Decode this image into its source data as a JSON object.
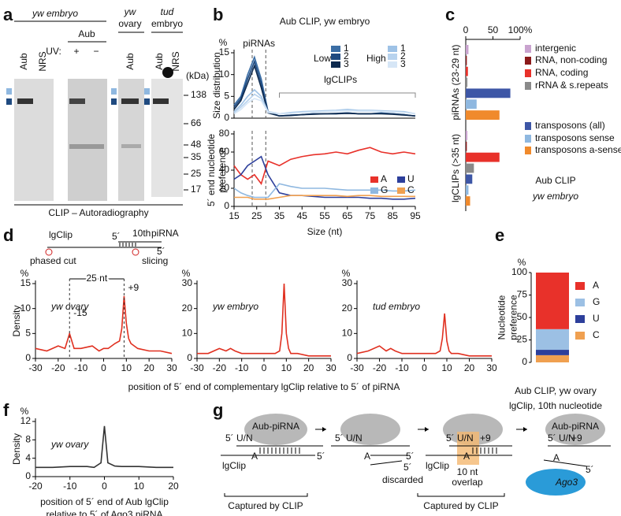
{
  "panel_letters": [
    "a",
    "b",
    "c",
    "d",
    "e",
    "f",
    "g"
  ],
  "panel_a": {
    "texts": [
      "yw embryo",
      "Aub",
      "UV:",
      "+",
      "−",
      "yw",
      "ovary",
      "tud",
      "embryo"
    ],
    "lane_labels": [
      "Aub",
      "NRS",
      "Aub",
      "Aub",
      "NRS"
    ],
    "unit": "(kDa)",
    "markers": [
      "138",
      "66",
      "48",
      "35",
      "25",
      "17"
    ],
    "caption": "CLIP – Autoradiography"
  },
  "panel_d_scheme": {
    "texts": [
      "lgClip",
      "5´",
      "10th",
      "piRNA",
      "5´",
      "phased cut",
      "slicing"
    ]
  },
  "panel_g": {
    "texts": [
      "Aub-piRNA",
      "5´ U/N",
      "lgClip",
      "A",
      "5´",
      "5´ U/N",
      "A",
      "5´",
      "5´",
      "discarded",
      "5´ U/N",
      "+9",
      "lgClip",
      "A",
      "10 nt",
      "overlap",
      "5´ U/N",
      "+9",
      "Aub-piRNA",
      "A",
      "5´",
      "Ago3",
      "Captured by CLIP",
      "Captured by CLIP"
    ]
  },
  "chart_data": [
    {
      "type": "line",
      "title": "Aub CLIP, yw embryo",
      "ylabel": [
        "Size distribution"
      ],
      "y_unit": "%",
      "annotations": [
        {
          "text": "piRNAs",
          "x": 26
        },
        {
          "text": "lgCLIPs",
          "x": 62
        }
      ],
      "legend_groups": [
        "Low",
        "High"
      ],
      "vlines": [
        23,
        29
      ],
      "x": [
        15,
        18,
        21,
        24,
        27,
        30,
        35,
        40,
        45,
        50,
        55,
        60,
        65,
        70,
        75,
        80,
        85,
        90,
        95
      ],
      "xlim": [
        15,
        95
      ],
      "ylim": [
        0,
        15
      ],
      "yticks": [
        0,
        5,
        10,
        15
      ],
      "series": [
        {
          "name": "1",
          "group": 0,
          "color": "#3b6ea5",
          "values": [
            3,
            5,
            10,
            14,
            9,
            1.5,
            0.5,
            0.7,
            0.8,
            1,
            1,
            1,
            1.2,
            1,
            1,
            1.2,
            1,
            0.8,
            0.5
          ]
        },
        {
          "name": "2",
          "group": 0,
          "color": "#1f4a80",
          "values": [
            2.5,
            4.5,
            9,
            13,
            8,
            1.5,
            0.5,
            0.7,
            0.8,
            1,
            1,
            1.1,
            1.2,
            1,
            1,
            1.1,
            1,
            0.8,
            0.5
          ]
        },
        {
          "name": "3",
          "group": 0,
          "color": "#0d2a4f",
          "values": [
            2,
            4,
            8,
            12,
            7,
            1.2,
            0.5,
            0.6,
            0.8,
            0.9,
            1,
            1,
            1.1,
            1,
            1,
            1,
            0.9,
            0.7,
            0.5
          ]
        },
        {
          "name": "1",
          "group": 1,
          "color": "#9ec2e6",
          "values": [
            1.5,
            3,
            5,
            6.5,
            5,
            1.5,
            1,
            1.3,
            1.5,
            1.6,
            1.7,
            1.8,
            2,
            1.8,
            1.8,
            1.7,
            1.6,
            1.5,
            1
          ]
        },
        {
          "name": "2",
          "group": 1,
          "color": "#b8d3ee",
          "values": [
            1.3,
            2.5,
            4,
            5.5,
            4.5,
            1.5,
            1,
            1.2,
            1.4,
            1.5,
            1.6,
            1.7,
            1.8,
            1.7,
            1.7,
            1.6,
            1.5,
            1.4,
            1
          ]
        },
        {
          "name": "3",
          "group": 1,
          "color": "#d6e6f6",
          "values": [
            1,
            2,
            3.5,
            4.5,
            4,
            1.3,
            1,
            1.1,
            1.3,
            1.4,
            1.5,
            1.6,
            1.7,
            1.6,
            1.6,
            1.5,
            1.4,
            1.3,
            1
          ]
        }
      ]
    },
    {
      "type": "line",
      "ylabel": [
        "5´ end nucleotide",
        "preference"
      ],
      "xlabel": [
        "Size (nt)"
      ],
      "vlines": [
        23,
        29
      ],
      "x": [
        15,
        18,
        21,
        24,
        27,
        30,
        35,
        40,
        45,
        50,
        55,
        60,
        65,
        70,
        75,
        80,
        85,
        90,
        95
      ],
      "xlim": [
        15,
        95
      ],
      "xticks": [
        15,
        25,
        35,
        45,
        55,
        65,
        75,
        85,
        95
      ],
      "ylim": [
        0,
        80
      ],
      "yticks": [
        0,
        20,
        40,
        60,
        80
      ],
      "series": [
        {
          "name": "A",
          "color": "#e8312a",
          "values": [
            45,
            35,
            30,
            35,
            25,
            50,
            45,
            52,
            55,
            57,
            58,
            60,
            58,
            62,
            65,
            60,
            58,
            60,
            58
          ]
        },
        {
          "name": "U",
          "color": "#2d3f9b",
          "values": [
            30,
            35,
            45,
            50,
            55,
            35,
            15,
            12,
            12,
            11,
            10,
            10,
            10,
            10,
            9,
            9,
            8,
            8,
            9
          ]
        },
        {
          "name": "G",
          "color": "#8fb8e0",
          "values": [
            20,
            15,
            12,
            10,
            10,
            10,
            25,
            22,
            20,
            20,
            20,
            19,
            18,
            18,
            18,
            18,
            17,
            17,
            18
          ]
        },
        {
          "name": "C",
          "color": "#f0a050",
          "values": [
            10,
            10,
            10,
            8,
            8,
            8,
            10,
            12,
            12,
            12,
            12,
            12,
            11,
            12,
            12,
            11,
            11,
            11,
            11
          ]
        }
      ]
    },
    {
      "type": "hbar",
      "categories": [
        "piRNAs (23-29 nt)",
        "lgCLIPs (>35 nt)"
      ],
      "caption": [
        "Aub CLIP",
        "yw embryo"
      ],
      "xlim": [
        0,
        100
      ],
      "xticks": [
        0,
        50,
        {
          "value": 100,
          "label": "100%"
        }
      ],
      "series": [
        {
          "name": "intergenic",
          "color": "#c9a3cf",
          "values": [
            5,
            3
          ]
        },
        {
          "name": "RNA, non-coding",
          "color": "#8b1a1a",
          "values": [
            2,
            2
          ]
        },
        {
          "name": "RNA, coding",
          "color": "#e8312a",
          "values": [
            4,
            62
          ]
        },
        {
          "name": "rRNA & s.repeats",
          "color": "#8a8a8a",
          "values": [
            3,
            15
          ]
        },
        {
          "name": "transposons (all)",
          "color": "#3d56a6",
          "values": [
            82,
            12
          ]
        },
        {
          "name": "transposons sense",
          "color": "#8fb8e0",
          "values": [
            20,
            5
          ]
        },
        {
          "name": "transposons a-sense",
          "color": "#f08a2c",
          "values": [
            62,
            8
          ]
        }
      ]
    },
    {
      "type": "line",
      "title": "yw ovary",
      "ylabel": [
        "Density"
      ],
      "y_unit": "%",
      "span_label": "25 nt",
      "xlabel": [
        "position of 5´ end of complementary lgClip relative to 5´ of piRNA"
      ],
      "annotations": [
        {
          "text": "-15",
          "x": -15
        },
        {
          "text": "+9",
          "x": 9
        }
      ],
      "x": [
        -30,
        -25,
        -20,
        -17,
        -15,
        -13,
        -10,
        -5,
        -2,
        0,
        2,
        5,
        7,
        8,
        9,
        10,
        11,
        12,
        15,
        20,
        25,
        30
      ],
      "xlim": [
        -30,
        30
      ],
      "xticks": [
        -30,
        -20,
        -10,
        0,
        10,
        20,
        30
      ],
      "ylim": [
        0,
        15
      ],
      "yticks": [
        0,
        5,
        10,
        15
      ],
      "series": [
        {
          "color": "#e03020",
          "values": [
            2,
            1.5,
            2.5,
            2,
            5,
            2,
            2,
            2.5,
            1.5,
            2,
            2,
            3,
            3.5,
            6,
            12.5,
            7,
            4,
            3,
            2,
            1.5,
            1.5,
            1
          ]
        }
      ]
    },
    {
      "type": "line",
      "title": "yw embryo",
      "y_unit": "%",
      "x": [
        -30,
        -25,
        -20,
        -17,
        -15,
        -13,
        -10,
        -5,
        -2,
        0,
        2,
        5,
        7,
        8,
        9,
        10,
        11,
        12,
        15,
        20,
        25,
        30
      ],
      "xlim": [
        -30,
        30
      ],
      "xticks": [
        -30,
        -20,
        -10,
        0,
        10,
        20,
        30
      ],
      "ylim": [
        0,
        30
      ],
      "yticks": [
        0,
        10,
        20,
        30
      ],
      "series": [
        {
          "color": "#e03020",
          "values": [
            2,
            2,
            4,
            3,
            4,
            3,
            2,
            2,
            2,
            2,
            2,
            2,
            3,
            10,
            30,
            10,
            4,
            2,
            2,
            1,
            1,
            1
          ]
        }
      ]
    },
    {
      "type": "line",
      "title": "tud embryo",
      "y_unit": "%",
      "x": [
        -30,
        -25,
        -20,
        -17,
        -15,
        -13,
        -10,
        -5,
        -2,
        0,
        2,
        5,
        7,
        8,
        9,
        10,
        11,
        12,
        15,
        20,
        25,
        30
      ],
      "xlim": [
        -30,
        30
      ],
      "xticks": [
        -30,
        -20,
        -10,
        0,
        10,
        20,
        30
      ],
      "ylim": [
        0,
        30
      ],
      "yticks": [
        0,
        10,
        20,
        30
      ],
      "series": [
        {
          "color": "#e03020",
          "values": [
            2,
            3,
            5,
            3,
            4,
            3,
            2,
            2,
            2,
            2,
            2,
            2,
            3,
            8,
            18,
            7,
            3,
            2,
            2,
            1,
            1,
            1
          ]
        }
      ]
    },
    {
      "type": "stacked_bar",
      "ylabel": [
        "Nucleotide",
        "preference"
      ],
      "y_unit": "%",
      "caption": [
        "Aub CLIP, yw ovary",
        "lgClip, 10th nucleotide"
      ],
      "ylim": [
        0,
        100
      ],
      "yticks": [
        0,
        25,
        50,
        75,
        100
      ],
      "series": [
        {
          "name": "A",
          "color": "#e8312a",
          "values": [
            63
          ]
        },
        {
          "name": "G",
          "color": "#9cc0e4",
          "values": [
            23
          ]
        },
        {
          "name": "U",
          "color": "#2d3f9b",
          "values": [
            6
          ]
        },
        {
          "name": "C",
          "color": "#f0a050",
          "values": [
            8
          ]
        }
      ]
    },
    {
      "type": "line",
      "title": "yw ovary",
      "ylabel": [
        "Density"
      ],
      "y_unit": "%",
      "xlabel": [
        "position of 5´ end of Aub lgClip",
        "relative to 5´ of Ago3 piRNA"
      ],
      "x": [
        -20,
        -15,
        -10,
        -5,
        -3,
        -1,
        0,
        1,
        3,
        5,
        10,
        15,
        20
      ],
      "xlim": [
        -20,
        20
      ],
      "xticks": [
        -20,
        -10,
        0,
        10,
        20
      ],
      "ylim": [
        0,
        12
      ],
      "yticks": [
        0,
        4,
        8,
        12
      ],
      "series": [
        {
          "color": "#333333",
          "values": [
            2,
            2,
            2.2,
            2.2,
            2,
            3,
            11,
            3,
            2.3,
            2.2,
            2.2,
            2,
            2
          ]
        }
      ]
    }
  ]
}
